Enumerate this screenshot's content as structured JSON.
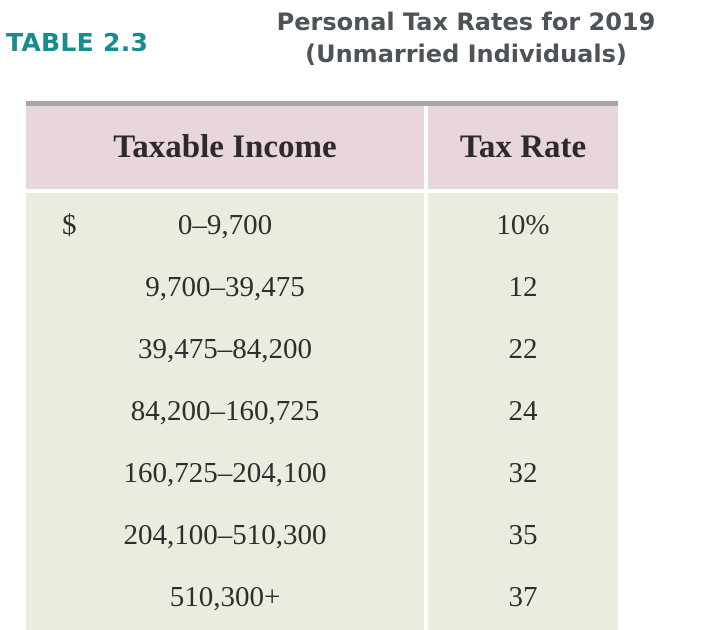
{
  "heading": {
    "label": "TABLE 2.3",
    "title_line1": "Personal Tax Rates for 2019",
    "title_line2": "(Unmarried Individuals)"
  },
  "table": {
    "columns": [
      "Taxable Income",
      "Tax Rate"
    ],
    "currency_symbol": "$",
    "rows": [
      {
        "income": "0–9,700",
        "rate": "10%"
      },
      {
        "income": "9,700–39,475",
        "rate": "12"
      },
      {
        "income": "39,475–84,200",
        "rate": "22"
      },
      {
        "income": "84,200–160,725",
        "rate": "24"
      },
      {
        "income": "160,725–204,100",
        "rate": "32"
      },
      {
        "income": "204,100–510,300",
        "rate": "35"
      },
      {
        "income": "510,300+",
        "rate": "37"
      }
    ]
  },
  "colors": {
    "label_teal": "#1a8b8f",
    "title_gray": "#4e5358",
    "header_pink": "#e8d5dd",
    "body_beige": "#ecebe0"
  }
}
